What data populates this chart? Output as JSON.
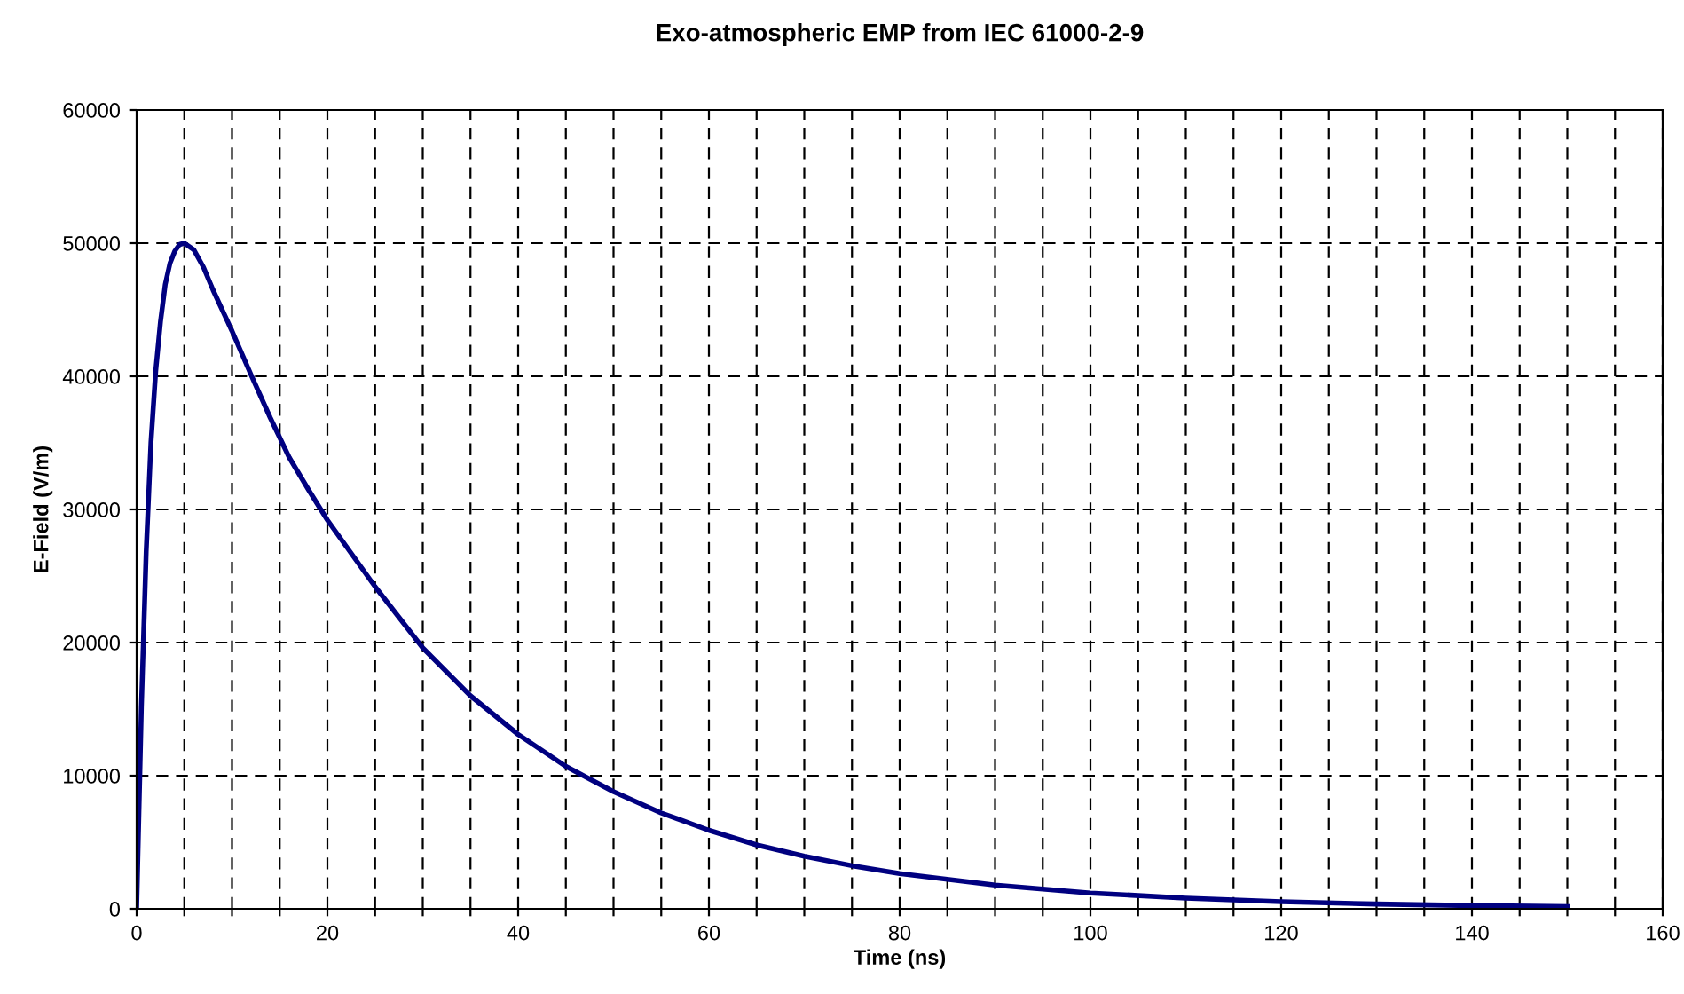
{
  "chart_data": {
    "type": "line",
    "title": "Exo-atmospheric EMP from IEC 61000-2-9",
    "xlabel": "Time (ns)",
    "ylabel": "E-Field (V/m)",
    "series": [
      {
        "color": "#000080",
        "x": [
          0,
          0.5,
          1,
          1.5,
          2,
          2.5,
          3,
          3.5,
          4,
          4.5,
          5,
          6,
          7,
          8,
          10,
          12,
          14,
          16,
          18,
          20,
          25,
          30,
          35,
          40,
          45,
          50,
          55,
          60,
          65,
          70,
          75,
          80,
          90,
          100,
          110,
          120,
          130,
          140,
          150
        ],
        "values": [
          0,
          15200,
          26800,
          35000,
          40400,
          44100,
          46900,
          48500,
          49400,
          49900,
          50000,
          49500,
          48200,
          46500,
          43400,
          40100,
          36900,
          33900,
          31500,
          29200,
          24200,
          19600,
          16000,
          13100,
          10700,
          8800,
          7200,
          5900,
          4800,
          3950,
          3240,
          2650,
          1780,
          1190,
          800,
          535,
          360,
          240,
          160
        ]
      }
    ],
    "xlim": [
      0,
      160
    ],
    "ylim": [
      0,
      60000
    ],
    "xticks": [
      0,
      {
        "value": 5,
        "label": null
      },
      {
        "value": 10,
        "label": null
      },
      {
        "value": 15,
        "label": null
      },
      20,
      {
        "value": 25,
        "label": null
      },
      {
        "value": 30,
        "label": null
      },
      {
        "value": 35,
        "label": null
      },
      40,
      {
        "value": 45,
        "label": null
      },
      {
        "value": 50,
        "label": null
      },
      {
        "value": 55,
        "label": null
      },
      60,
      {
        "value": 65,
        "label": null
      },
      {
        "value": 70,
        "label": null
      },
      {
        "value": 75,
        "label": null
      },
      80,
      {
        "value": 85,
        "label": null
      },
      {
        "value": 90,
        "label": null
      },
      {
        "value": 95,
        "label": null
      },
      100,
      {
        "value": 105,
        "label": null
      },
      {
        "value": 110,
        "label": null
      },
      {
        "value": 115,
        "label": null
      },
      120,
      {
        "value": 125,
        "label": null
      },
      {
        "value": 130,
        "label": null
      },
      {
        "value": 135,
        "label": null
      },
      140,
      {
        "value": 145,
        "label": null
      },
      {
        "value": 150,
        "label": null
      },
      {
        "value": 155,
        "label": null
      },
      160
    ],
    "yticks": [
      0,
      10000,
      20000,
      30000,
      40000,
      50000,
      60000
    ],
    "grid": true,
    "legend": false,
    "marker": "none",
    "line_style": "solid"
  }
}
